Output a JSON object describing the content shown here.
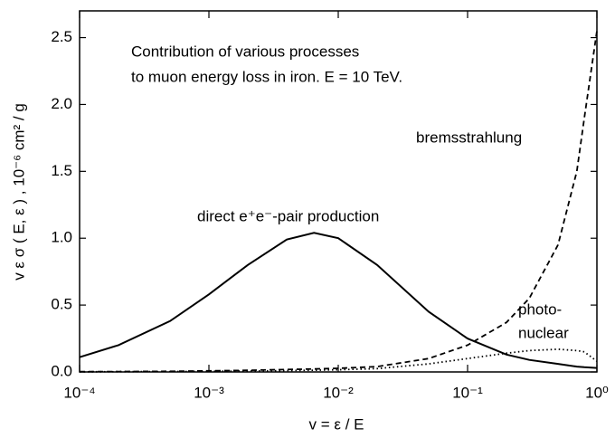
{
  "chart_data": {
    "type": "line",
    "x_label": "v = ε / E",
    "y_label": "v ε σ ( E, ε ) , 10⁻⁶ cm² / g",
    "annotations": [
      "Contribution of various processes",
      "to muon energy loss in iron. E = 10 TeV.",
      "bremsstrahlung",
      "direct e⁺e⁻-pair production",
      "photo-",
      "nuclear"
    ],
    "x_scale": "log",
    "xlim": [
      0.0001,
      1
    ],
    "xticks": [
      {
        "value": 0.0001,
        "label": "10⁻⁴"
      },
      {
        "value": 0.001,
        "label": "10⁻³"
      },
      {
        "value": 0.01,
        "label": "10⁻²"
      },
      {
        "value": 0.1,
        "label": "10⁻¹"
      },
      {
        "value": 1,
        "label": "10⁰"
      }
    ],
    "ylim": [
      0,
      2.7
    ],
    "yticks": [
      {
        "value": 0,
        "label": "0.0"
      },
      0.5,
      {
        "value": 1,
        "label": "1.0"
      },
      1.5,
      {
        "value": 2,
        "label": "2.0"
      },
      2.5
    ],
    "x": [
      0.0001,
      0.0002,
      0.0005,
      0.001,
      0.002,
      0.004,
      0.0065,
      0.01,
      0.02,
      0.05,
      0.1,
      0.2,
      0.3,
      0.5,
      0.7,
      0.8,
      1
    ],
    "series": [
      {
        "color": "#000000",
        "style": "solid",
        "values": [
          0.11,
          0.2,
          0.38,
          0.58,
          0.8,
          0.99,
          1.04,
          1.0,
          0.8,
          0.45,
          0.25,
          0.13,
          0.09,
          0.06,
          0.04,
          0.035,
          0.03
        ]
      },
      {
        "color": "#000000",
        "style": "dashed",
        "values": [
          0.002,
          0.003,
          0.005,
          0.008,
          0.012,
          0.018,
          0.022,
          0.027,
          0.04,
          0.1,
          0.2,
          0.37,
          0.55,
          0.95,
          1.5,
          1.9,
          2.55
        ]
      },
      {
        "color": "#000000",
        "style": "dotted",
        "values": [
          0.001,
          0.002,
          0.003,
          0.005,
          0.007,
          0.01,
          0.013,
          0.016,
          0.025,
          0.06,
          0.1,
          0.14,
          0.16,
          0.17,
          0.16,
          0.15,
          0.08
        ]
      }
    ]
  }
}
